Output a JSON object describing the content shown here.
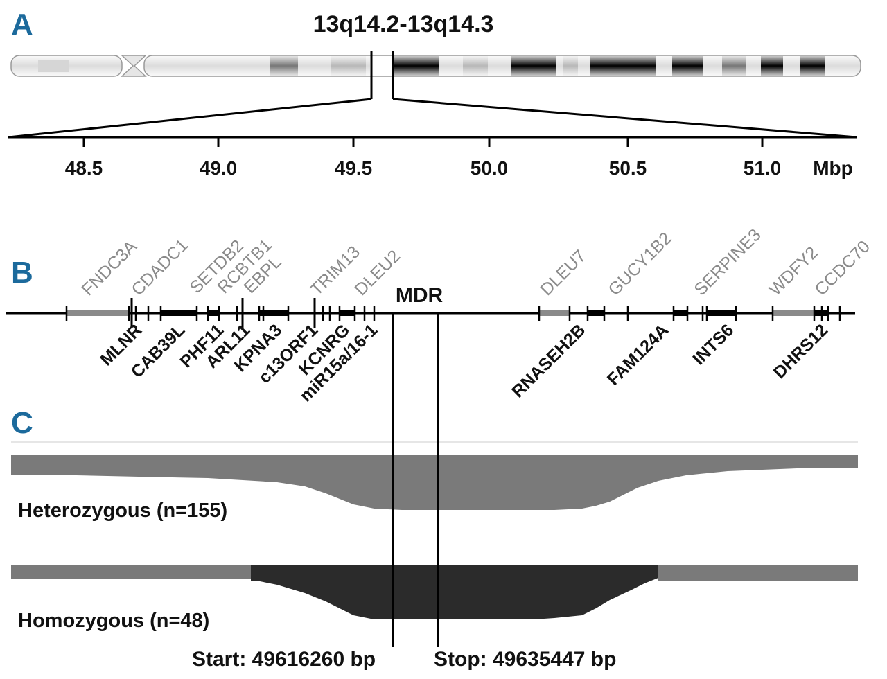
{
  "panels": {
    "a": "A",
    "b": "B",
    "c": "C"
  },
  "title": "13q14.2-13q14.3",
  "axis": {
    "unit": "Mbp",
    "ticks": [
      "48.5",
      "49.0",
      "49.5",
      "50.0",
      "50.5",
      "51.0"
    ]
  },
  "genes_top": [
    "FNDC3A",
    "CDADC1",
    "SETDB2",
    "RCBTB1",
    "EBPL",
    "TRIM13",
    "DLEU2",
    "DLEU7",
    "GUCY1B2",
    "SERPINE3",
    "WDFY2",
    "CCDC70"
  ],
  "genes_bottom": [
    "MLNR",
    "CAB39L",
    "PHF11",
    "ARL11",
    "KPNA3",
    "c13ORF1",
    "KCNRG",
    "miR15a/16-1",
    "RNASEH2B",
    "FAM124A",
    "INTS6",
    "DHRS12"
  ],
  "mdr_label": "MDR",
  "tracks": {
    "heterozygous": "Heterozygous (n=155)",
    "homozygous": "Homozygous (n=48)"
  },
  "start_label": "Start: 49616260 bp",
  "stop_label": "Stop: 49635447 bp",
  "colors": {
    "letters": "#1c6a9c",
    "het": "#7a7a7a",
    "hom": "#2b2b2b",
    "gene_gray": "#8a8a8a"
  }
}
